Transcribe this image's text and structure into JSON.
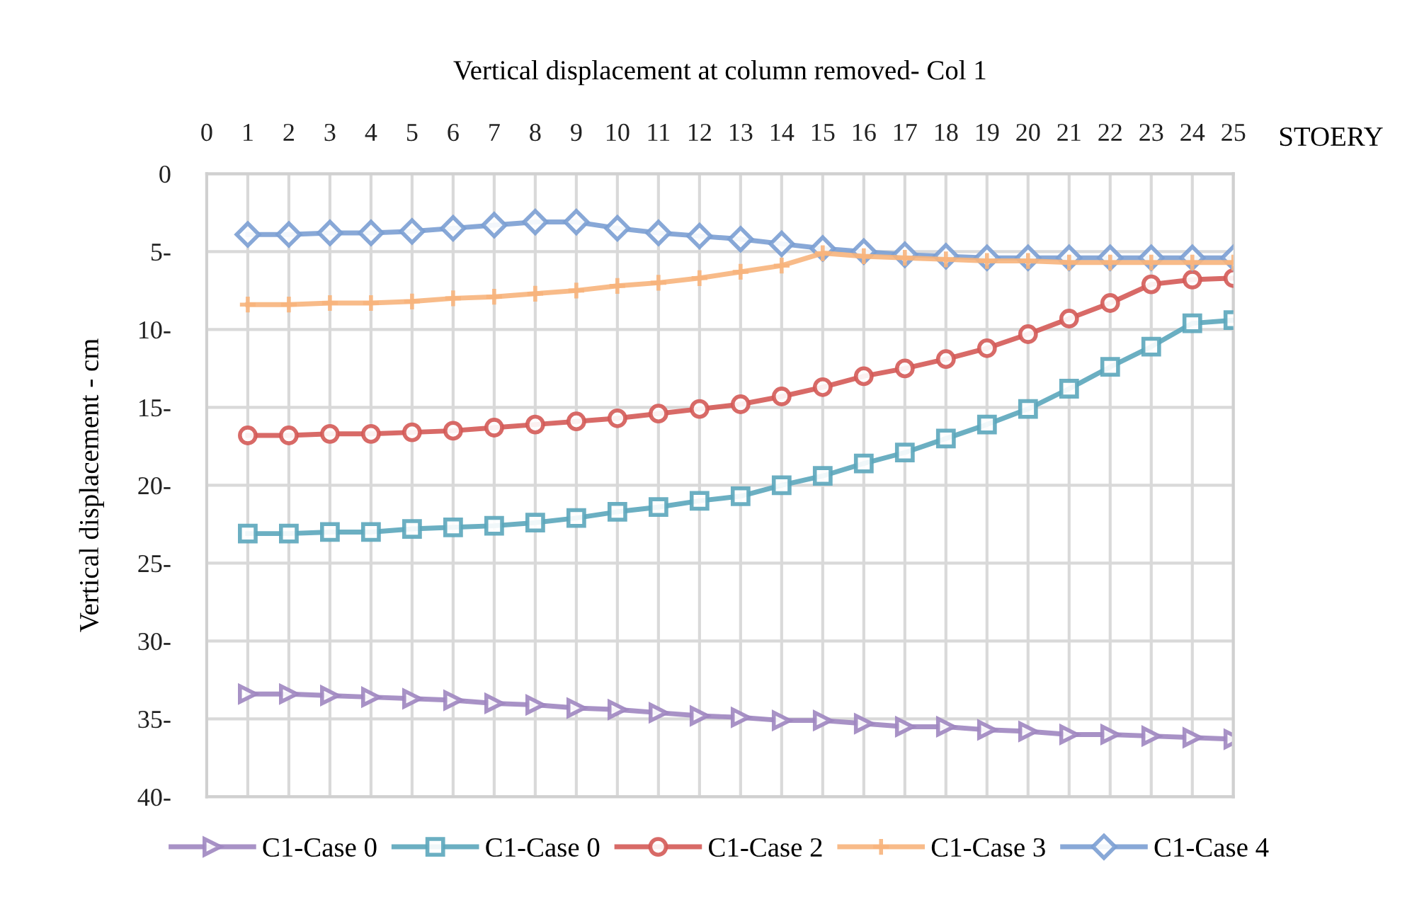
{
  "chart_data": {
    "type": "line",
    "title": "Vertical displacement at column removed- Col 1",
    "xlabel": "STOERY",
    "ylabel": "Vertical displacement - cm",
    "x": [
      1,
      2,
      3,
      4,
      5,
      6,
      7,
      8,
      9,
      10,
      11,
      12,
      13,
      14,
      15,
      16,
      17,
      18,
      19,
      20,
      21,
      22,
      23,
      24,
      25
    ],
    "series": [
      {
        "name": "C1-Case 0",
        "color": "#9e86c0",
        "marker": "triangle",
        "values": [
          33.4,
          33.4,
          33.5,
          33.6,
          33.7,
          33.8,
          34.0,
          34.1,
          34.3,
          34.4,
          34.6,
          34.8,
          34.9,
          35.1,
          35.1,
          35.3,
          35.5,
          35.5,
          35.7,
          35.8,
          36.0,
          36.0,
          36.1,
          36.2,
          36.3
        ]
      },
      {
        "name": "C1-Case 0",
        "color": "#5ba6bb",
        "marker": "square",
        "values": [
          23.1,
          23.1,
          23.0,
          23.0,
          22.8,
          22.7,
          22.6,
          22.4,
          22.1,
          21.7,
          21.4,
          21.0,
          20.7,
          20.0,
          19.4,
          18.6,
          17.9,
          17.0,
          16.1,
          15.1,
          13.8,
          12.4,
          11.1,
          9.6,
          9.4
        ]
      },
      {
        "name": "C1-Case 2",
        "color": "#d45a57",
        "marker": "circle",
        "values": [
          16.8,
          16.8,
          16.7,
          16.7,
          16.6,
          16.5,
          16.3,
          16.1,
          15.9,
          15.7,
          15.4,
          15.1,
          14.8,
          14.3,
          13.7,
          13.0,
          12.5,
          11.9,
          11.2,
          10.3,
          9.3,
          8.3,
          7.1,
          6.8,
          6.7
        ]
      },
      {
        "name": "C1-Case 3",
        "color": "#f7b47c",
        "marker": "cross",
        "values": [
          8.4,
          8.4,
          8.3,
          8.3,
          8.2,
          8.0,
          7.9,
          7.7,
          7.5,
          7.2,
          7.0,
          6.7,
          6.3,
          5.9,
          5.1,
          5.3,
          5.4,
          5.5,
          5.6,
          5.6,
          5.7,
          5.7,
          5.7,
          5.7,
          5.7
        ]
      },
      {
        "name": "C1-Case 4",
        "color": "#7b9fd3",
        "marker": "diamond",
        "values": [
          3.9,
          3.9,
          3.8,
          3.8,
          3.7,
          3.5,
          3.3,
          3.1,
          3.1,
          3.5,
          3.8,
          4.0,
          4.2,
          4.5,
          4.8,
          5.0,
          5.2,
          5.3,
          5.4,
          5.4,
          5.4,
          5.4,
          5.4,
          5.4,
          5.4
        ]
      }
    ],
    "xlim": [
      0,
      25
    ],
    "xticks": [
      0,
      1,
      2,
      3,
      4,
      5,
      6,
      7,
      8,
      9,
      10,
      11,
      12,
      13,
      14,
      15,
      16,
      17,
      18,
      19,
      20,
      21,
      22,
      23,
      24,
      25
    ],
    "ylim": [
      40,
      0
    ],
    "yticks": [
      0,
      {
        "value": 5,
        "label": "5-"
      },
      {
        "value": 10,
        "label": "10-"
      },
      {
        "value": 15,
        "label": "15-"
      },
      {
        "value": 20,
        "label": "20-"
      },
      {
        "value": 25,
        "label": "25-"
      },
      {
        "value": 30,
        "label": "30-"
      },
      {
        "value": 35,
        "label": "35-"
      },
      {
        "value": 40,
        "label": "40-"
      }
    ],
    "grid": true,
    "legend": "bottom",
    "line_style": "solid"
  }
}
